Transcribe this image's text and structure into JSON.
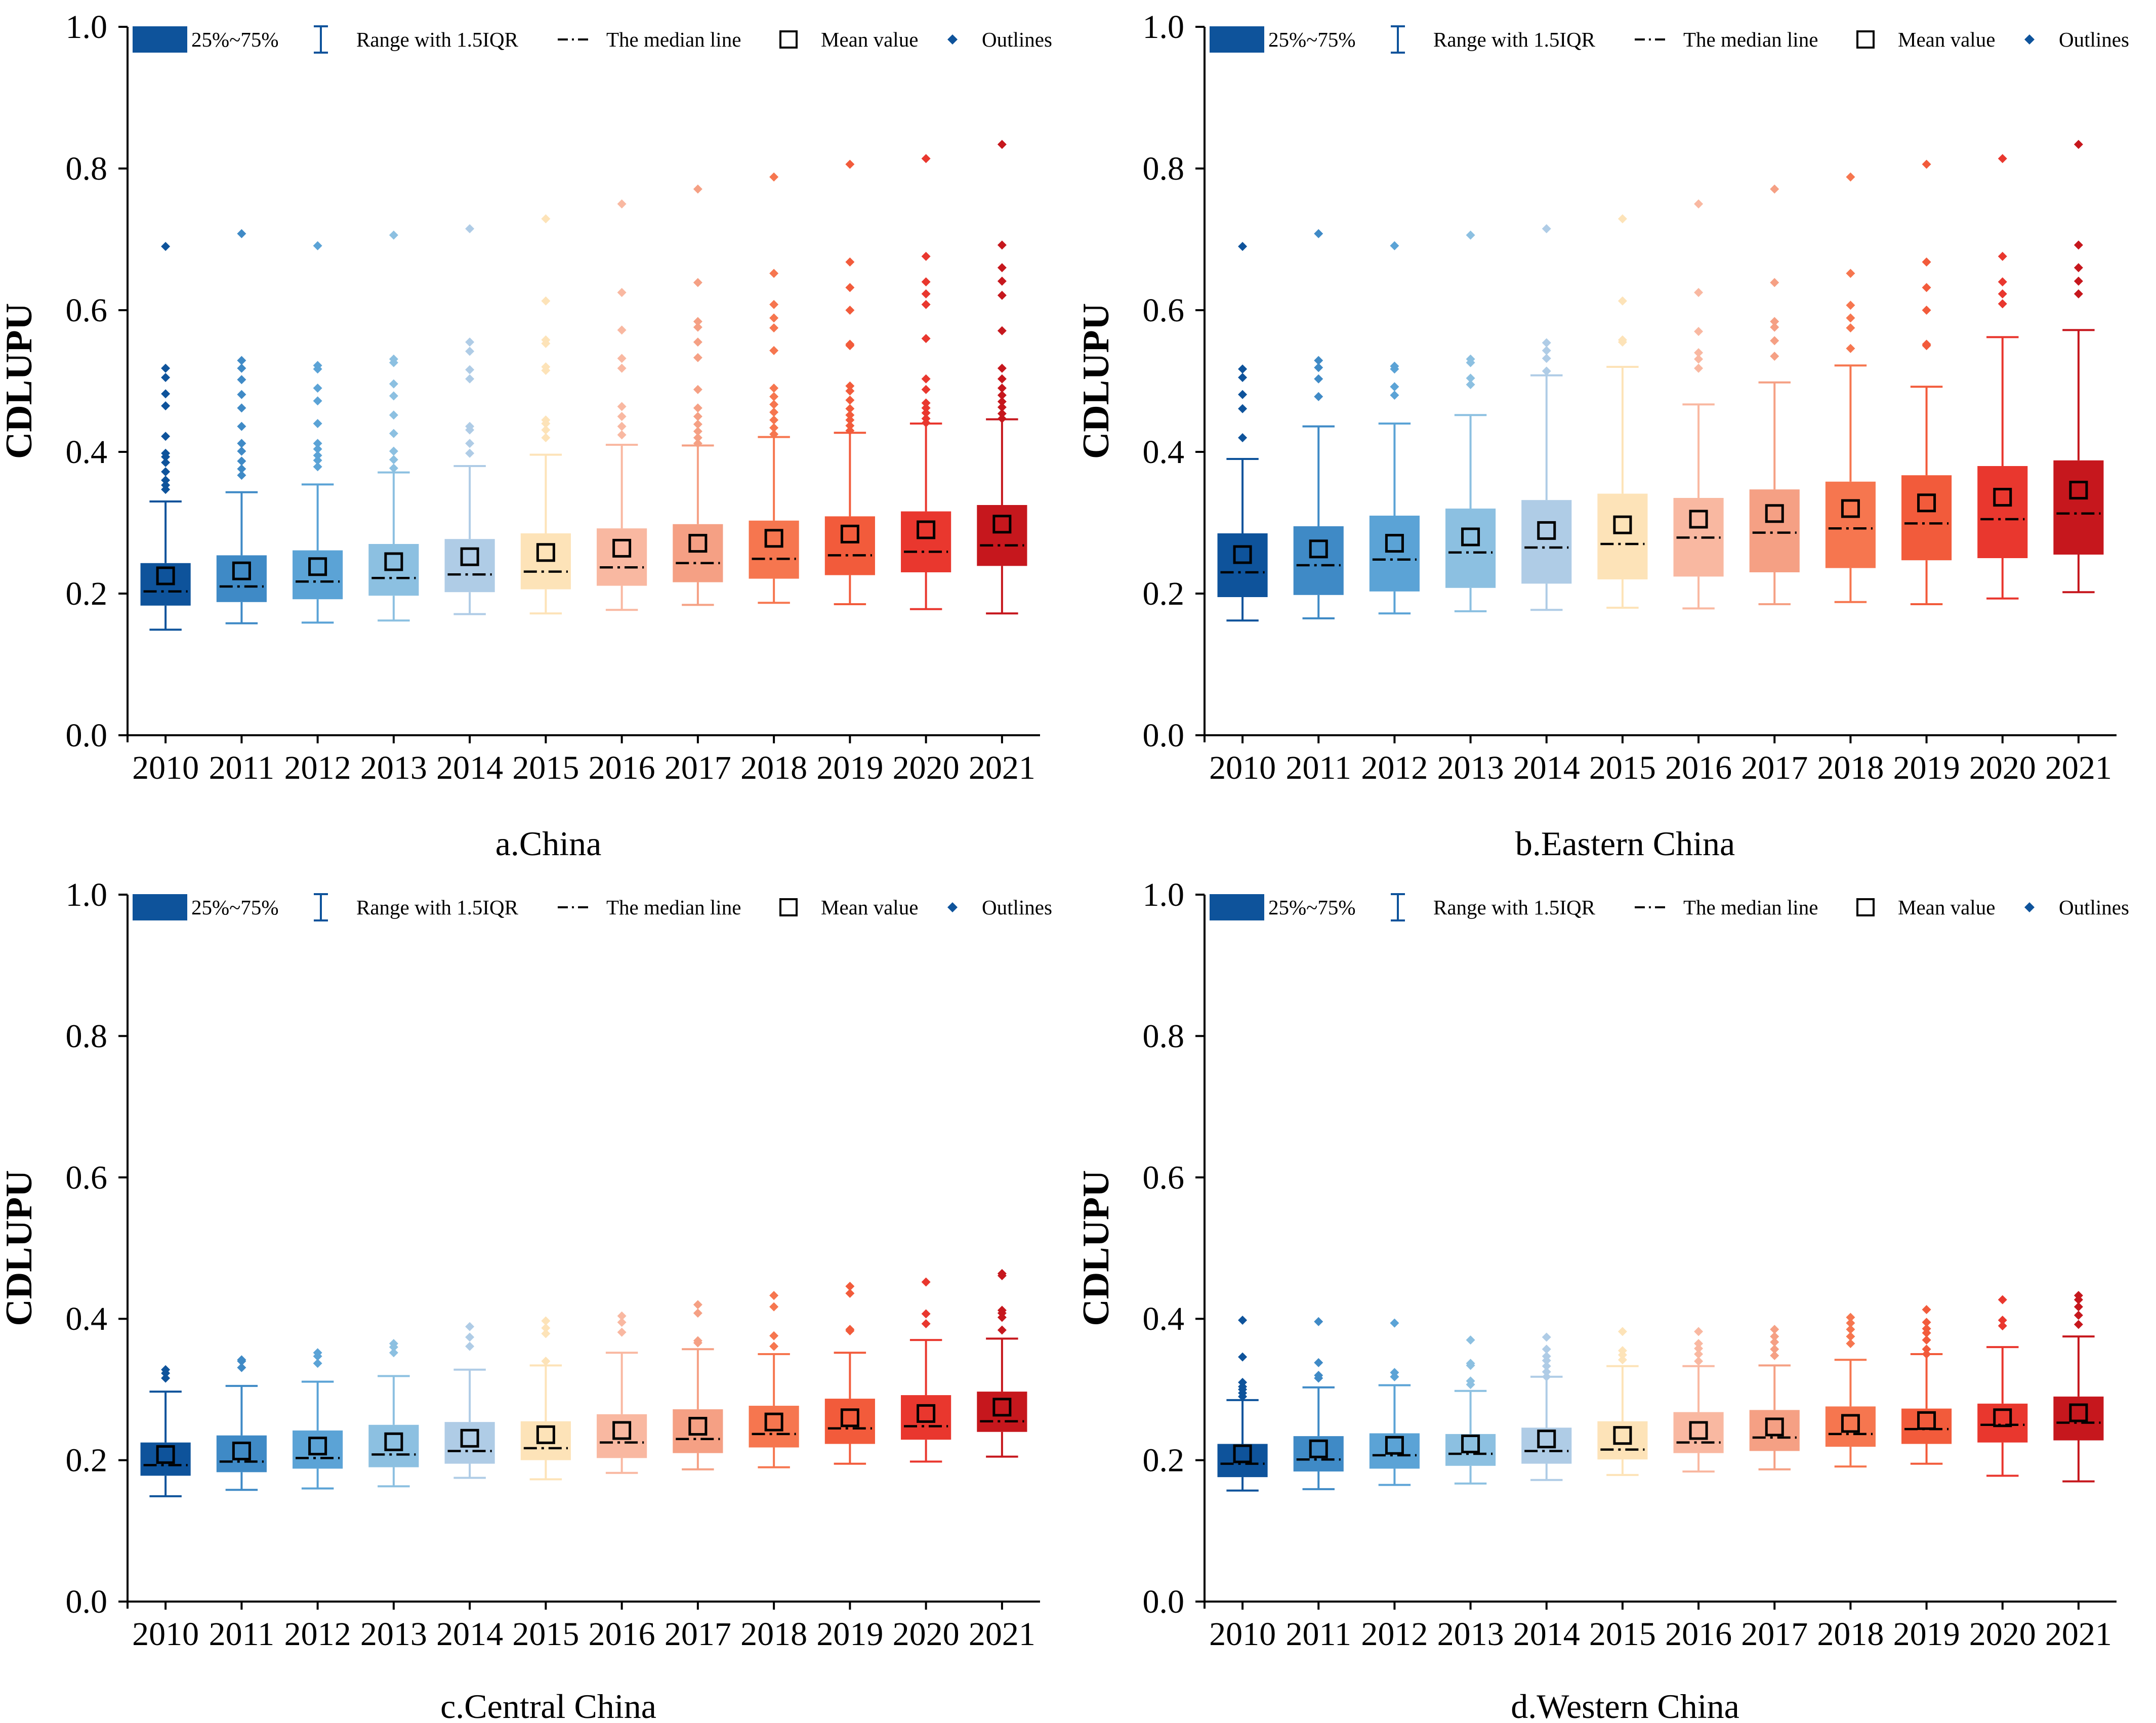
{
  "chart_data": [
    {
      "type": "boxplot",
      "caption": "a.China",
      "ylabel": "CDLUPU",
      "ylim": [
        0,
        1.0
      ],
      "yticks": [
        "0.0",
        "0.2",
        "0.4",
        "0.6",
        "0.8",
        "1.0"
      ],
      "categories": [
        "2010",
        "2011",
        "2012",
        "2013",
        "2014",
        "2015",
        "2016",
        "2017",
        "2018",
        "2019",
        "2020",
        "2021"
      ],
      "q1": [
        0.183,
        0.188,
        0.192,
        0.197,
        0.202,
        0.206,
        0.211,
        0.216,
        0.221,
        0.226,
        0.23,
        0.239
      ],
      "q3": [
        0.243,
        0.254,
        0.261,
        0.27,
        0.277,
        0.285,
        0.292,
        0.298,
        0.303,
        0.309,
        0.316,
        0.325
      ],
      "median": [
        0.203,
        0.21,
        0.217,
        0.222,
        0.227,
        0.231,
        0.237,
        0.243,
        0.249,
        0.254,
        0.259,
        0.268
      ],
      "mean": [
        0.225,
        0.232,
        0.238,
        0.245,
        0.252,
        0.258,
        0.264,
        0.271,
        0.278,
        0.284,
        0.29,
        0.298
      ],
      "whisker_low": [
        0.149,
        0.158,
        0.159,
        0.162,
        0.171,
        0.172,
        0.177,
        0.184,
        0.187,
        0.185,
        0.178,
        0.172
      ],
      "whisker_high": [
        0.33,
        0.343,
        0.354,
        0.371,
        0.38,
        0.396,
        0.41,
        0.409,
        0.421,
        0.427,
        0.44,
        0.446
      ],
      "outliers": [
        [
          0.347,
          0.353,
          0.36,
          0.372,
          0.385,
          0.393,
          0.398,
          0.422,
          0.465,
          0.482,
          0.505,
          0.518,
          0.69
        ],
        [
          0.367,
          0.376,
          0.387,
          0.401,
          0.412,
          0.436,
          0.462,
          0.481,
          0.502,
          0.518,
          0.529,
          0.708
        ],
        [
          0.379,
          0.388,
          0.395,
          0.404,
          0.412,
          0.44,
          0.472,
          0.49,
          0.517,
          0.522,
          0.691
        ],
        [
          0.377,
          0.389,
          0.401,
          0.426,
          0.452,
          0.479,
          0.496,
          0.526,
          0.531,
          0.706
        ],
        [
          0.398,
          0.412,
          0.431,
          0.436,
          0.503,
          0.516,
          0.542,
          0.555,
          0.715
        ],
        [
          0.42,
          0.431,
          0.44,
          0.445,
          0.515,
          0.52,
          0.553,
          0.558,
          0.613,
          0.729
        ],
        [
          0.424,
          0.436,
          0.45,
          0.464,
          0.518,
          0.532,
          0.572,
          0.625,
          0.75
        ],
        [
          0.412,
          0.42,
          0.429,
          0.439,
          0.45,
          0.462,
          0.488,
          0.533,
          0.555,
          0.576,
          0.584,
          0.639,
          0.771
        ],
        [
          0.425,
          0.434,
          0.445,
          0.456,
          0.467,
          0.478,
          0.49,
          0.543,
          0.575,
          0.589,
          0.608,
          0.652,
          0.788
        ],
        [
          0.43,
          0.437,
          0.445,
          0.452,
          0.461,
          0.473,
          0.486,
          0.493,
          0.55,
          0.552,
          0.6,
          0.632,
          0.668,
          0.806
        ],
        [
          0.441,
          0.447,
          0.455,
          0.462,
          0.469,
          0.488,
          0.503,
          0.56,
          0.608,
          0.623,
          0.64,
          0.676,
          0.814
        ],
        [
          0.447,
          0.454,
          0.463,
          0.471,
          0.48,
          0.49,
          0.503,
          0.518,
          0.571,
          0.621,
          0.641,
          0.66,
          0.692,
          0.834
        ]
      ]
    },
    {
      "type": "boxplot",
      "caption": "b.Eastern China",
      "ylabel": "CDLUPU",
      "ylim": [
        0,
        1.0
      ],
      "yticks": [
        "0.0",
        "0.2",
        "0.4",
        "0.6",
        "0.8",
        "1.0"
      ],
      "categories": [
        "2010",
        "2011",
        "2012",
        "2013",
        "2014",
        "2015",
        "2016",
        "2017",
        "2018",
        "2019",
        "2020",
        "2021"
      ],
      "q1": [
        0.195,
        0.198,
        0.203,
        0.208,
        0.214,
        0.22,
        0.224,
        0.23,
        0.236,
        0.247,
        0.25,
        0.255
      ],
      "q3": [
        0.285,
        0.295,
        0.31,
        0.32,
        0.332,
        0.341,
        0.335,
        0.347,
        0.358,
        0.367,
        0.38,
        0.388
      ],
      "median": [
        0.23,
        0.24,
        0.248,
        0.258,
        0.265,
        0.27,
        0.279,
        0.286,
        0.292,
        0.299,
        0.305,
        0.313
      ],
      "mean": [
        0.255,
        0.263,
        0.271,
        0.28,
        0.289,
        0.297,
        0.305,
        0.313,
        0.32,
        0.328,
        0.336,
        0.346
      ],
      "whisker_low": [
        0.162,
        0.165,
        0.172,
        0.175,
        0.177,
        0.18,
        0.179,
        0.185,
        0.188,
        0.185,
        0.193,
        0.202
      ],
      "whisker_high": [
        0.39,
        0.436,
        0.44,
        0.452,
        0.508,
        0.52,
        0.467,
        0.498,
        0.522,
        0.492,
        0.562,
        0.572
      ],
      "outliers": [
        [
          0.42,
          0.461,
          0.481,
          0.505,
          0.517,
          0.69
        ],
        [
          0.478,
          0.503,
          0.519,
          0.529,
          0.708
        ],
        [
          0.48,
          0.492,
          0.517,
          0.521,
          0.691
        ],
        [
          0.495,
          0.504,
          0.526,
          0.531,
          0.706
        ],
        [
          0.514,
          0.532,
          0.543,
          0.554,
          0.715
        ],
        [
          0.555,
          0.558,
          0.613,
          0.729
        ],
        [
          0.518,
          0.531,
          0.54,
          0.57,
          0.625,
          0.75
        ],
        [
          0.535,
          0.557,
          0.576,
          0.584,
          0.639,
          0.771
        ],
        [
          0.546,
          0.575,
          0.589,
          0.607,
          0.652,
          0.788
        ],
        [
          0.55,
          0.552,
          0.6,
          0.632,
          0.668,
          0.806
        ],
        [
          0.609,
          0.623,
          0.64,
          0.676,
          0.814
        ],
        [
          0.623,
          0.641,
          0.66,
          0.692,
          0.834
        ]
      ]
    },
    {
      "type": "boxplot",
      "caption": "c.Central China",
      "ylabel": "CDLUPU",
      "ylim": [
        0,
        1.0
      ],
      "yticks": [
        "0.0",
        "0.2",
        "0.4",
        "0.6",
        "0.8",
        "1.0"
      ],
      "categories": [
        "2010",
        "2011",
        "2012",
        "2013",
        "2014",
        "2015",
        "2016",
        "2017",
        "2018",
        "2019",
        "2020",
        "2021"
      ],
      "q1": [
        0.178,
        0.183,
        0.188,
        0.19,
        0.195,
        0.2,
        0.203,
        0.21,
        0.218,
        0.223,
        0.229,
        0.24
      ],
      "q3": [
        0.225,
        0.235,
        0.242,
        0.25,
        0.254,
        0.255,
        0.265,
        0.272,
        0.277,
        0.287,
        0.292,
        0.297
      ],
      "median": [
        0.193,
        0.198,
        0.203,
        0.208,
        0.213,
        0.217,
        0.225,
        0.23,
        0.237,
        0.245,
        0.248,
        0.255
      ],
      "mean": [
        0.208,
        0.213,
        0.22,
        0.226,
        0.231,
        0.236,
        0.242,
        0.248,
        0.254,
        0.26,
        0.266,
        0.275
      ],
      "whisker_low": [
        0.149,
        0.158,
        0.16,
        0.163,
        0.175,
        0.173,
        0.182,
        0.187,
        0.19,
        0.195,
        0.198,
        0.205
      ],
      "whisker_high": [
        0.297,
        0.305,
        0.311,
        0.319,
        0.328,
        0.334,
        0.352,
        0.357,
        0.35,
        0.352,
        0.37,
        0.372
      ],
      "outliers": [
        [
          0.316,
          0.323,
          0.328
        ],
        [
          0.331,
          0.34,
          0.342
        ],
        [
          0.337,
          0.347,
          0.352
        ],
        [
          0.352,
          0.36,
          0.365
        ],
        [
          0.361,
          0.374,
          0.389
        ],
        [
          0.34,
          0.379,
          0.387,
          0.397
        ],
        [
          0.381,
          0.395,
          0.404
        ],
        [
          0.366,
          0.369,
          0.408,
          0.42
        ],
        [
          0.361,
          0.376,
          0.417,
          0.433
        ],
        [
          0.383,
          0.385,
          0.436,
          0.446
        ],
        [
          0.393,
          0.407,
          0.452
        ],
        [
          0.384,
          0.402,
          0.408,
          0.412,
          0.461,
          0.464
        ]
      ]
    },
    {
      "type": "boxplot",
      "caption": "d.Western China",
      "ylabel": "CDLUPU",
      "ylim": [
        0,
        1.0
      ],
      "yticks": [
        "0.0",
        "0.2",
        "0.4",
        "0.6",
        "0.8",
        "1.0"
      ],
      "categories": [
        "2010",
        "2011",
        "2012",
        "2013",
        "2014",
        "2015",
        "2016",
        "2017",
        "2018",
        "2019",
        "2020",
        "2021"
      ],
      "q1": [
        0.176,
        0.184,
        0.188,
        0.192,
        0.195,
        0.201,
        0.21,
        0.213,
        0.219,
        0.223,
        0.225,
        0.228
      ],
      "q3": [
        0.223,
        0.234,
        0.238,
        0.237,
        0.246,
        0.255,
        0.268,
        0.271,
        0.276,
        0.273,
        0.28,
        0.29
      ],
      "median": [
        0.195,
        0.201,
        0.207,
        0.209,
        0.213,
        0.215,
        0.225,
        0.232,
        0.237,
        0.244,
        0.25,
        0.253
      ],
      "mean": [
        0.209,
        0.216,
        0.221,
        0.223,
        0.23,
        0.235,
        0.242,
        0.247,
        0.252,
        0.256,
        0.26,
        0.267
      ],
      "whisker_low": [
        0.157,
        0.159,
        0.165,
        0.167,
        0.172,
        0.179,
        0.184,
        0.187,
        0.191,
        0.195,
        0.178,
        0.17
      ],
      "whisker_high": [
        0.285,
        0.303,
        0.306,
        0.298,
        0.318,
        0.333,
        0.333,
        0.334,
        0.342,
        0.35,
        0.36,
        0.375
      ],
      "outliers": [
        [
          0.29,
          0.295,
          0.3,
          0.304,
          0.31,
          0.346,
          0.398
        ],
        [
          0.316,
          0.32,
          0.338,
          0.396
        ],
        [
          0.318,
          0.324,
          0.394
        ],
        [
          0.307,
          0.312,
          0.334,
          0.337,
          0.37
        ],
        [
          0.318,
          0.325,
          0.333,
          0.341,
          0.347,
          0.357,
          0.374
        ],
        [
          0.342,
          0.349,
          0.355,
          0.382
        ],
        [
          0.34,
          0.35,
          0.358,
          0.365,
          0.382
        ],
        [
          0.348,
          0.357,
          0.367,
          0.375,
          0.385
        ],
        [
          0.365,
          0.375,
          0.385,
          0.394,
          0.402
        ],
        [
          0.35,
          0.357,
          0.37,
          0.38,
          0.386,
          0.395,
          0.413
        ],
        [
          0.39,
          0.398,
          0.427
        ],
        [
          0.392,
          0.405,
          0.417,
          0.427,
          0.433
        ]
      ]
    }
  ],
  "legend": {
    "box_label": "25%~75%",
    "whisker_label": "Range  with 1.5IQR",
    "median_label": "The median line",
    "mean_label": "Mean value",
    "outlier_label": "Outlines"
  },
  "colors": {
    "years": [
      "#0e539b",
      "#3f8ac6",
      "#5ba3d6",
      "#8cc0e1",
      "#afcce6",
      "#fde3b8",
      "#f9b8a1",
      "#f5a084",
      "#f6764f",
      "#f25b3b",
      "#e9372e",
      "#c6171d"
    ],
    "axis": "#000000",
    "legend_accent": "#0e539b"
  }
}
